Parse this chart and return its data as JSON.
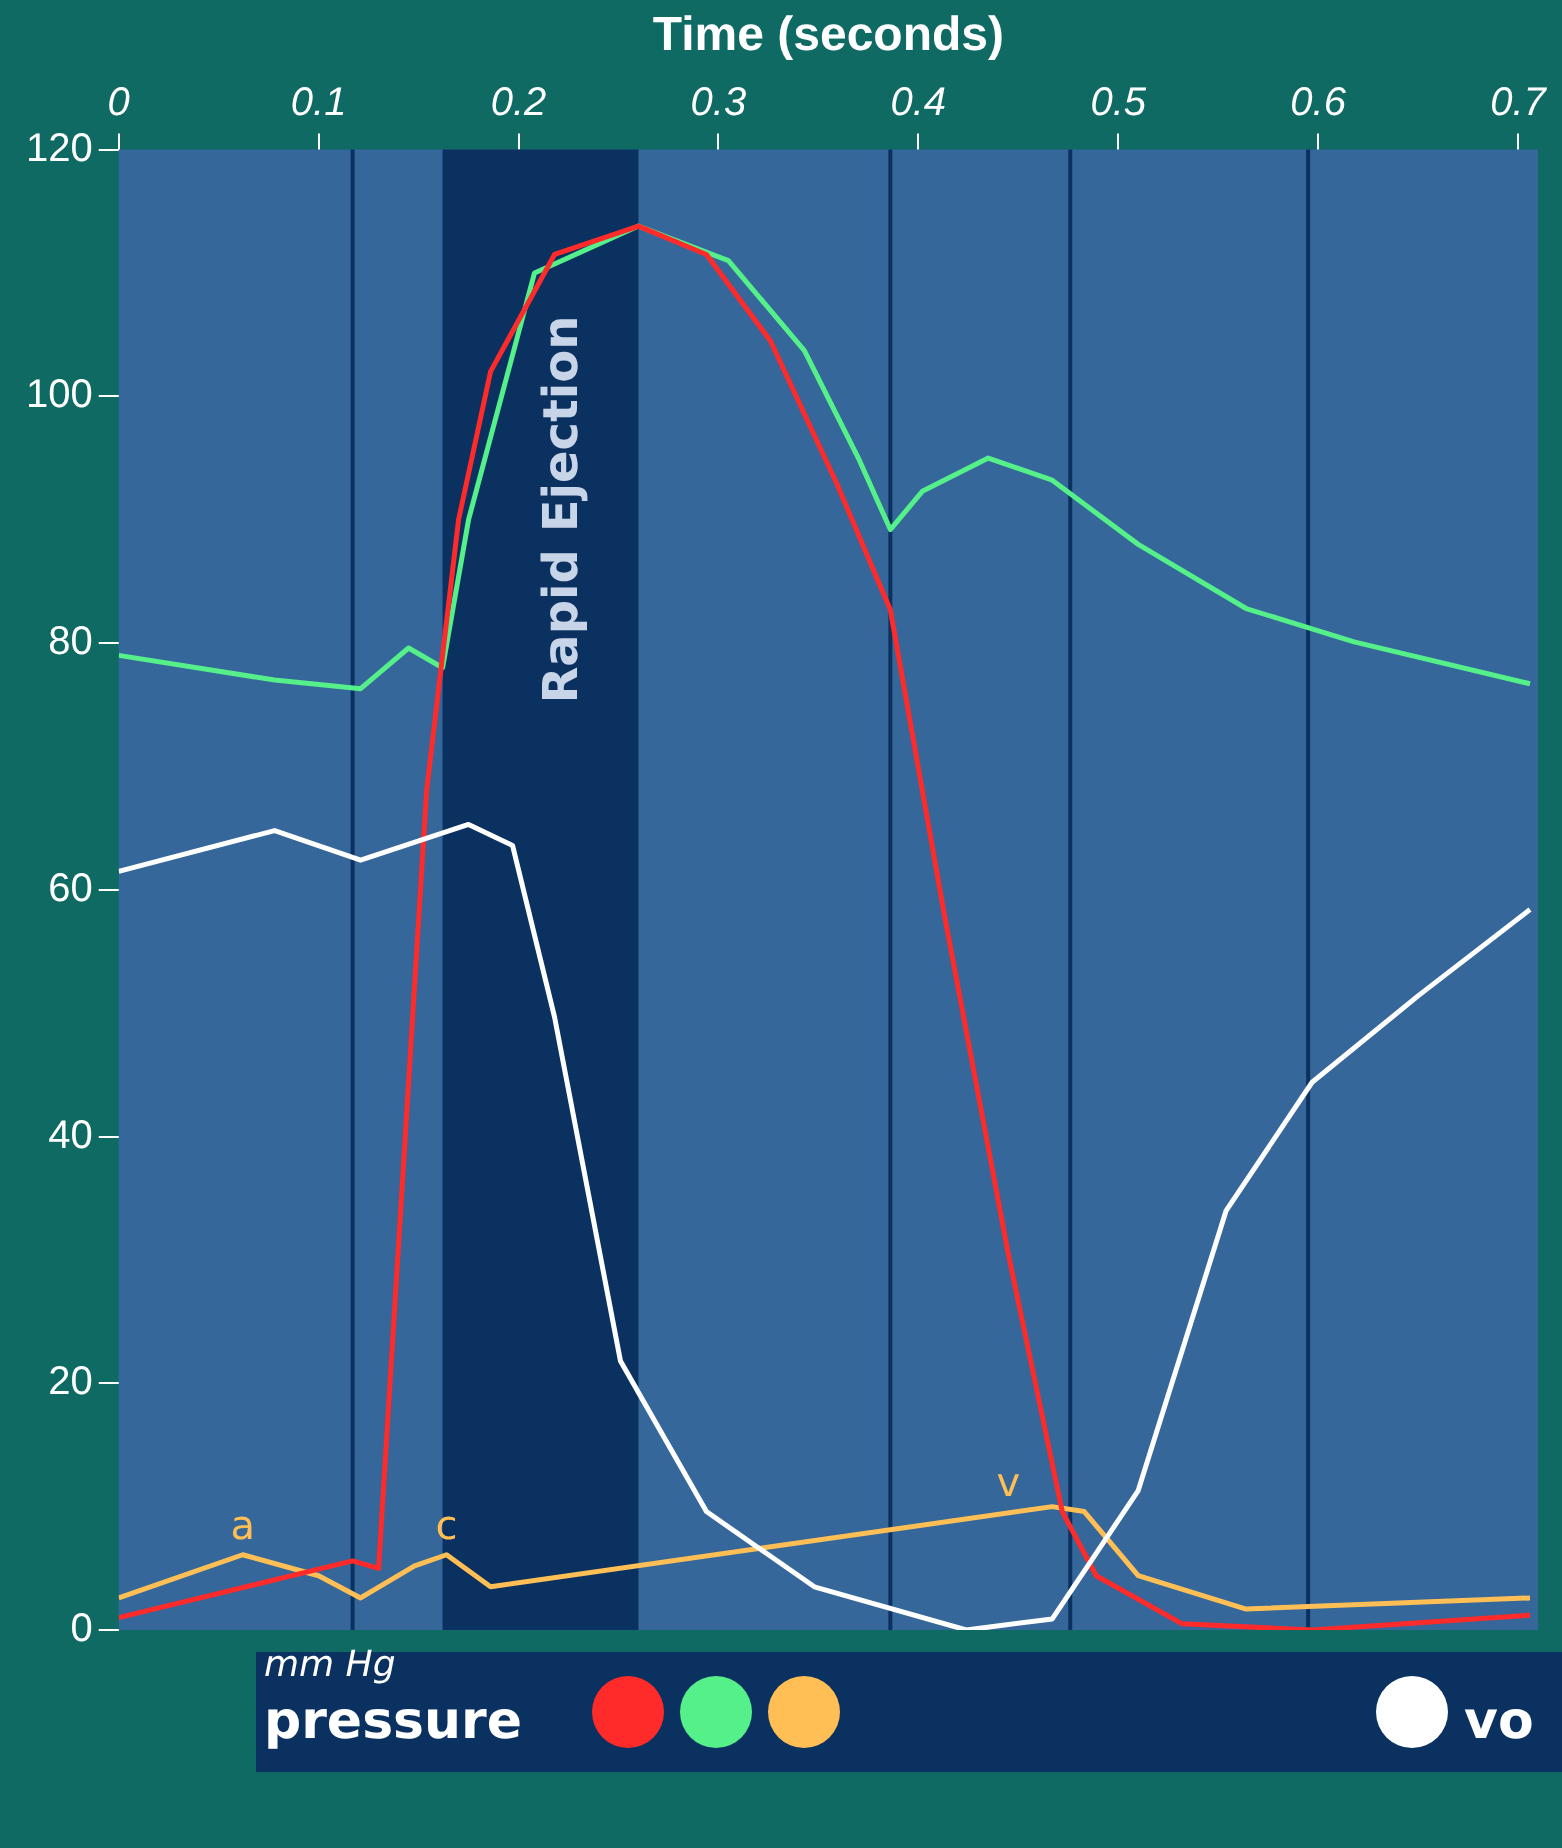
{
  "chart_data": {
    "type": "line",
    "xlabel": "Time (seconds)",
    "xlim": [
      0,
      0.71
    ],
    "xticks": [
      0,
      0.1,
      0.2,
      0.3,
      0.4,
      0.5,
      0.6,
      0.7
    ],
    "ylim": [
      0,
      120
    ],
    "yticks": [
      0,
      20,
      40,
      60,
      80,
      100,
      120
    ],
    "grid": false,
    "legend": false,
    "marker": "none",
    "line_style": "solid",
    "series": [
      {
        "color": "#ffffff",
        "x": [
          0,
          0.078,
          0.121,
          0.175,
          0.197,
          0.218,
          0.251,
          0.294,
          0.348,
          0.424,
          0.467,
          0.51,
          0.554,
          0.597,
          0.65,
          0.706
        ],
        "values": [
          61.5,
          64.8,
          62.4,
          65.3,
          63.6,
          49.7,
          21.8,
          9.6,
          3.5,
          0,
          0.9,
          11.3,
          34,
          44.4,
          51.4,
          58.4
        ]
      },
      {
        "color": "#ff2a2a",
        "x": [
          0,
          0.117,
          0.13,
          0.154,
          0.17,
          0.186,
          0.218,
          0.26,
          0.294,
          0.326,
          0.359,
          0.386,
          0.413,
          0.445,
          0.472,
          0.489,
          0.532,
          0.597,
          0.706
        ],
        "values": [
          1,
          5.6,
          5,
          68,
          90,
          102,
          111.5,
          113.8,
          111.5,
          104.5,
          93,
          82.7,
          58,
          30.5,
          9.6,
          4.4,
          0.5,
          0,
          1.2
        ]
      },
      {
        "color": "#55f08a",
        "x": [
          0,
          0.078,
          0.121,
          0.145,
          0.162,
          0.175,
          0.208,
          0.26,
          0.305,
          0.343,
          0.37,
          0.386,
          0.402,
          0.435,
          0.467,
          0.51,
          0.564,
          0.618,
          0.706
        ],
        "values": [
          79,
          77,
          76.3,
          79.6,
          78,
          90,
          110,
          113.8,
          111,
          103.7,
          95,
          89.2,
          92.3,
          95,
          93.2,
          88,
          82.8,
          80.1,
          76.7
        ]
      },
      {
        "color": "#ffbf55",
        "x": [
          0,
          0.062,
          0.1,
          0.121,
          0.148,
          0.164,
          0.186,
          0.467,
          0.483,
          0.51,
          0.564,
          0.706
        ],
        "values": [
          2.6,
          6.1,
          4.4,
          2.6,
          5.2,
          6.1,
          3.5,
          10,
          9.6,
          4.4,
          1.7,
          2.6
        ]
      }
    ],
    "bands": [
      {
        "axis": "x",
        "from": 0.162,
        "to": 0.26,
        "label": "Rapid Ejection",
        "color": "#0b3160"
      }
    ],
    "ref_lines": [
      {
        "axis": "x",
        "value": 0.117,
        "color": "#0b3160"
      },
      {
        "axis": "x",
        "value": 0.386,
        "color": "#0b3160"
      },
      {
        "axis": "x",
        "value": 0.476,
        "color": "#0b3160"
      },
      {
        "axis": "x",
        "value": 0.595,
        "color": "#0b3160"
      }
    ],
    "annotations": [
      {
        "text": "a",
        "x": 0.062,
        "y": 6.1
      },
      {
        "text": "c",
        "x": 0.164,
        "y": 6.1
      },
      {
        "text": "v",
        "x": 0.445,
        "y": 9.6
      },
      "mm Hg",
      "pressure",
      "vo"
    ]
  }
}
